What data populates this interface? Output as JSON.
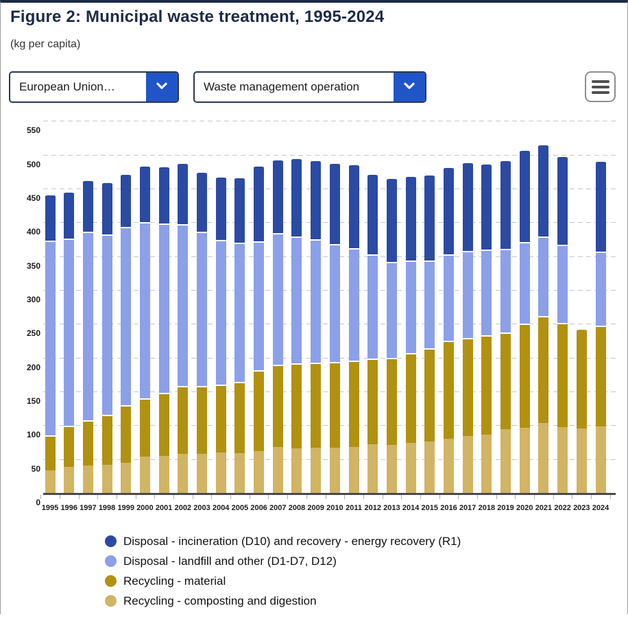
{
  "header": {
    "title": "Figure 2: Municipal waste treatment, 1995-2024",
    "subtitle": "(kg per capita)"
  },
  "controls": {
    "geo_dropdown": {
      "value": "European Union…",
      "chevron_icon": "chevron-down"
    },
    "operation_dropdown": {
      "value": "Waste management operation",
      "chevron_icon": "chevron-down"
    },
    "menu_button_icon": "hamburger-menu",
    "accent_blue": "#2055c8"
  },
  "chart_data": {
    "type": "bar",
    "stacked": true,
    "title": "Figure 2: Municipal waste treatment, 1995-2024",
    "ylabel": "kg per capita",
    "xlabel": "",
    "ylim": [
      0,
      560
    ],
    "yticks": [
      0,
      50,
      100,
      150,
      200,
      250,
      300,
      350,
      400,
      450,
      500,
      550
    ],
    "grid": "dashed-horizontal",
    "legend_position": "bottom",
    "categories": [
      1995,
      1996,
      1997,
      1998,
      1999,
      2000,
      2001,
      2002,
      2003,
      2004,
      2005,
      2006,
      2007,
      2008,
      2009,
      2010,
      2011,
      2012,
      2013,
      2014,
      2015,
      2016,
      2017,
      2018,
      2019,
      2020,
      2021,
      2022,
      2023,
      2024
    ],
    "series": [
      {
        "key": "composting",
        "name": "Recycling - composting and digestion",
        "color": "#d1b464",
        "values": [
          33,
          38,
          41,
          42,
          45,
          54,
          55,
          58,
          58,
          60,
          59,
          62,
          68,
          66,
          67,
          67,
          68,
          72,
          71,
          74,
          76,
          80,
          84,
          86,
          94,
          96,
          103,
          97,
          95,
          98
        ]
      },
      {
        "key": "material",
        "name": "Recycling - material",
        "color": "#b19110",
        "values": [
          52,
          61,
          66,
          73,
          85,
          86,
          93,
          100,
          100,
          100,
          105,
          119,
          121,
          125,
          125,
          127,
          128,
          127,
          129,
          133,
          138,
          145,
          145,
          147,
          143,
          154,
          158,
          154,
          148,
          149
        ]
      },
      {
        "key": "landfill",
        "name": "Disposal - landfill and other (D1-D7, D12)",
        "color": "#8ba0e8",
        "values": [
          288,
          277,
          279,
          267,
          263,
          260,
          250,
          239,
          228,
          214,
          206,
          191,
          195,
          188,
          183,
          174,
          166,
          154,
          141,
          136,
          129,
          128,
          129,
          127,
          124,
          121,
          118,
          116,
          0,
          110
        ]
      },
      {
        "key": "incineration",
        "name": "Disposal - incineration (D10) and recovery - energy recovery (R1)",
        "color": "#2b4aa3",
        "values": [
          69,
          70,
          77,
          78,
          79,
          84,
          85,
          91,
          89,
          94,
          97,
          112,
          109,
          116,
          117,
          120,
          124,
          119,
          125,
          126,
          128,
          129,
          131,
          127,
          131,
          137,
          137,
          131,
          0,
          134
        ]
      }
    ]
  },
  "legend": {
    "items": [
      {
        "label": "Disposal - incineration (D10) and recovery - energy recovery (R1)",
        "color": "#2b4aa3"
      },
      {
        "label": "Disposal - landfill and other (D1-D7, D12)",
        "color": "#8ba0e8"
      },
      {
        "label": "Recycling - material",
        "color": "#b19110"
      },
      {
        "label": "Recycling - composting and digestion",
        "color": "#d1b464"
      }
    ]
  }
}
